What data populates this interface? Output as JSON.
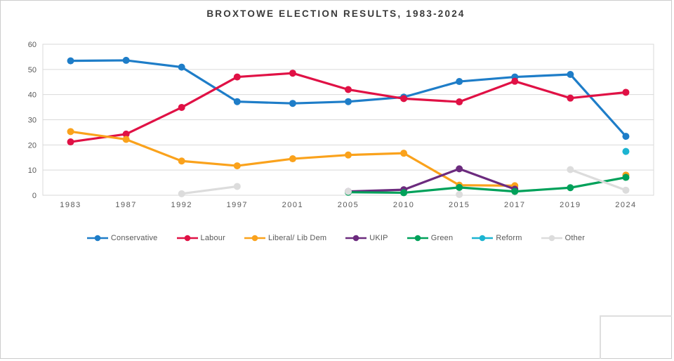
{
  "chart_data": {
    "type": "line",
    "title": "BROXTOWE ELECTION RESULTS, 1983-2024",
    "categories": [
      "1983",
      "1987",
      "1992",
      "1997",
      "2001",
      "2005",
      "2010",
      "2015",
      "2017",
      "2019",
      "2024"
    ],
    "series": [
      {
        "name": "Conservative",
        "color": "#1e7dc8",
        "values": [
          53.4,
          53.6,
          50.9,
          37.2,
          36.5,
          37.2,
          39.0,
          45.2,
          47.0,
          48.0,
          23.4
        ]
      },
      {
        "name": "Labour",
        "color": "#e01145",
        "values": [
          21.2,
          24.3,
          34.9,
          47.0,
          48.5,
          42.0,
          38.4,
          37.1,
          45.3,
          38.6,
          40.9
        ]
      },
      {
        "name": "Liberal/ Lib Dem",
        "color": "#faa21c",
        "values": [
          25.3,
          22.2,
          13.6,
          11.7,
          14.5,
          16.0,
          16.7,
          4.0,
          3.8,
          null,
          8.0
        ]
      },
      {
        "name": "UKIP",
        "color": "#6c2b7e",
        "values": [
          null,
          null,
          null,
          null,
          null,
          1.5,
          2.2,
          10.5,
          2.4,
          null,
          null
        ]
      },
      {
        "name": "Green",
        "color": "#00a15a",
        "values": [
          null,
          null,
          null,
          null,
          null,
          1.2,
          1.0,
          3.1,
          1.5,
          3.0,
          7.1
        ]
      },
      {
        "name": "Reform",
        "color": "#1cb4d1",
        "values": [
          null,
          null,
          null,
          null,
          null,
          null,
          null,
          null,
          null,
          null,
          17.4
        ]
      },
      {
        "name": "Other",
        "color": "#dcdcdc",
        "values": [
          null,
          null,
          0.6,
          3.5,
          null,
          1.5,
          null,
          0.3,
          null,
          10.2,
          2.0
        ]
      }
    ],
    "xlabel": "",
    "ylabel": "",
    "ylim": [
      0,
      60
    ],
    "yticks": [
      0,
      10,
      20,
      30,
      40,
      50,
      60
    ],
    "grid": "horizontal",
    "legend_position": "bottom"
  },
  "theme": {
    "grid_color": "#d9d9d9",
    "plot_border_color": "#d9d9d9",
    "axis_text_color": "#595959",
    "title_color": "#3a3a3a",
    "frame_border_color": "#cccccc",
    "edge_line_color": "#dedede",
    "background": "#ffffff"
  }
}
